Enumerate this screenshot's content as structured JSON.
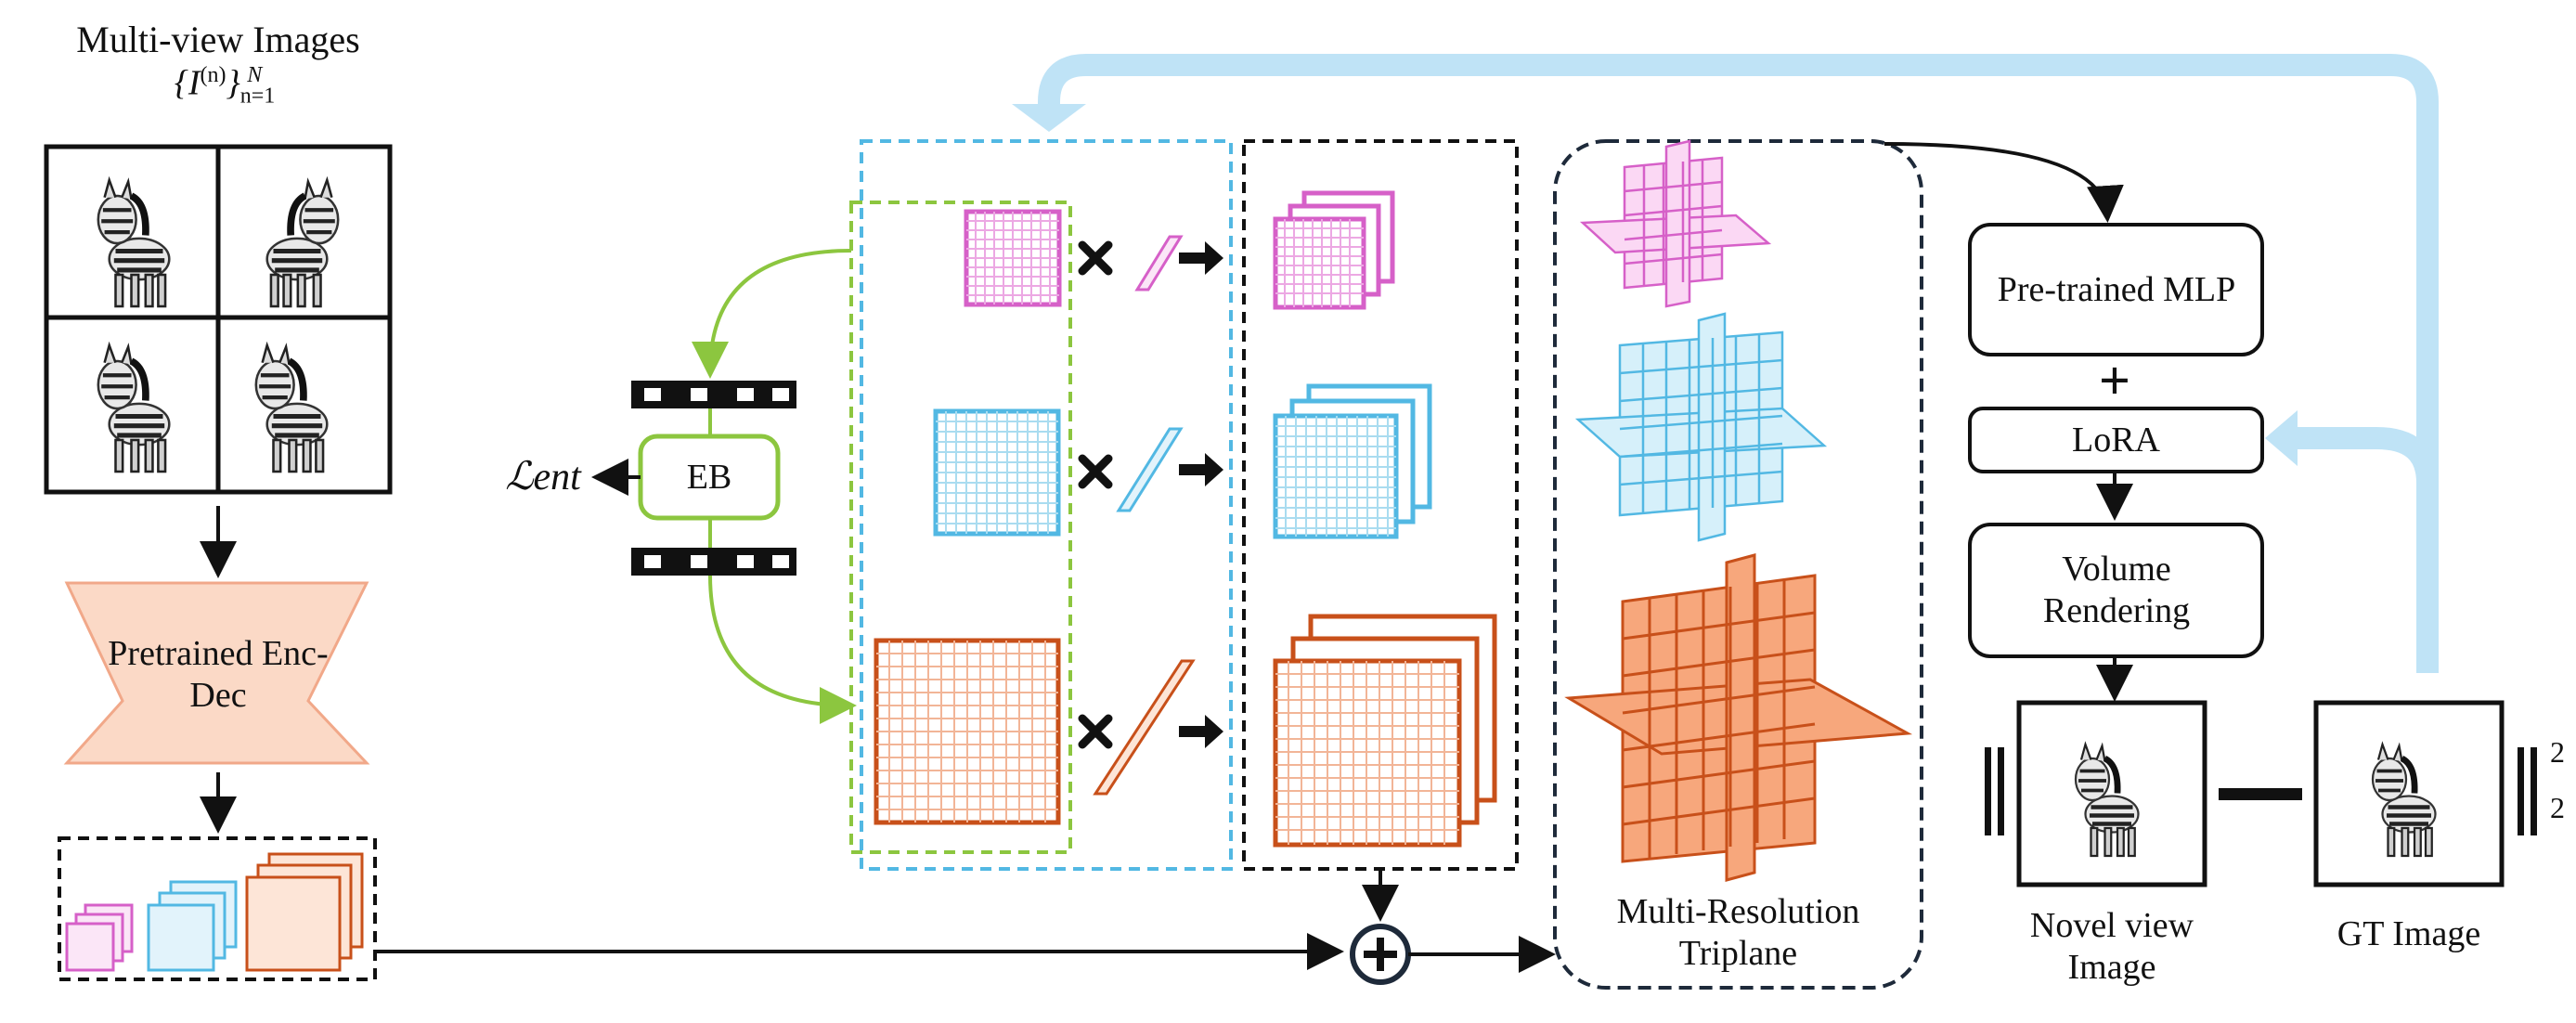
{
  "colors": {
    "pink": "#d660c8",
    "cyan": "#52b8e3",
    "orange": "#c8501a",
    "orange_fill": "#f7a77c",
    "green": "#8cc63f",
    "light_blue": "#bfe3f6",
    "dark_navy": "#1e2a3a",
    "encoder_fill": "#fbd9c6"
  },
  "labels": {
    "multiview_title": "Multi-view Images",
    "multiview_set": "{I(n)}n=1N",
    "encoder": "Pretrained Enc-Dec",
    "entropy_loss": "ℒent",
    "eb": "EB",
    "triplane": "Multi-Resolution Triplane",
    "mlp": "Pre-trained MLP",
    "plus": "+",
    "lora": "LoRA",
    "volume_rendering": "Volume Rendering",
    "novel_view": "Novel view Image",
    "gt_image": "GT Image",
    "norm_sub": "2",
    "norm_sup": "2"
  },
  "icons": [
    "zebra-icon",
    "multiply-icon",
    "right-arrow-icon",
    "add-circle-icon",
    "film-strip-icon"
  ]
}
